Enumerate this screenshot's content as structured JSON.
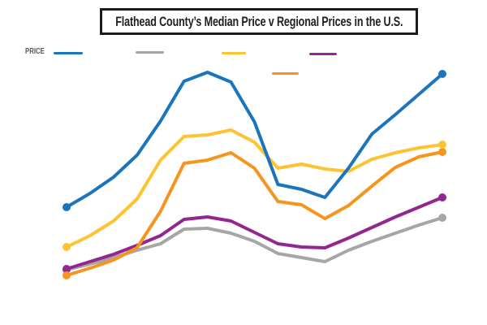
{
  "title": {
    "text": "Flathead County’s Median Price v Regional Prices in the U.S."
  },
  "y_axis_title": "PRICE",
  "legend": {
    "labels_visible": false,
    "items": [
      {
        "name": "blue-series",
        "color": "#1b75bc"
      },
      {
        "name": "gray-series",
        "color": "#a6a6a6"
      },
      {
        "name": "yellow-series",
        "color": "#fdc330"
      },
      {
        "name": "purple-series",
        "color": "#92278f"
      },
      {
        "name": "orange-series",
        "color": "#f7941e"
      }
    ]
  },
  "chart_data": {
    "type": "line",
    "title": "Flathead County’s Median Price v Regional Prices in the U.S.",
    "xlabel": "",
    "ylabel": "PRICE",
    "axes_tick_labels_visible": false,
    "grid": false,
    "legend_position": "top",
    "markers": "endpoints-only",
    "points_per_series": 17,
    "ylim": [
      50,
      320
    ],
    "series": [
      {
        "name": "gray",
        "color": "#a6a6a6",
        "values": [
          68,
          75,
          83,
          92,
          100,
          118,
          119,
          113,
          103,
          88,
          83,
          78,
          92,
          103,
          113,
          123,
          132
        ]
      },
      {
        "name": "purple",
        "color": "#92278f",
        "values": [
          69,
          78,
          87,
          98,
          110,
          130,
          133,
          128,
          114,
          100,
          96,
          95,
          107,
          120,
          133,
          145,
          157
        ]
      },
      {
        "name": "orange",
        "color": "#f7941e",
        "values": [
          61,
          70,
          80,
          95,
          140,
          199,
          203,
          212,
          193,
          152,
          148,
          131,
          147,
          171,
          194,
          207,
          213
        ]
      },
      {
        "name": "yellow",
        "color": "#fdc330",
        "values": [
          96,
          110,
          128,
          155,
          203,
          232,
          234,
          240,
          225,
          193,
          198,
          192,
          189,
          204,
          212,
          218,
          222
        ]
      },
      {
        "name": "blue",
        "color": "#1b75bc",
        "values": [
          145,
          162,
          182,
          209,
          251,
          300,
          311,
          299,
          250,
          173,
          167,
          157,
          193,
          235,
          259,
          284,
          309
        ]
      }
    ]
  }
}
